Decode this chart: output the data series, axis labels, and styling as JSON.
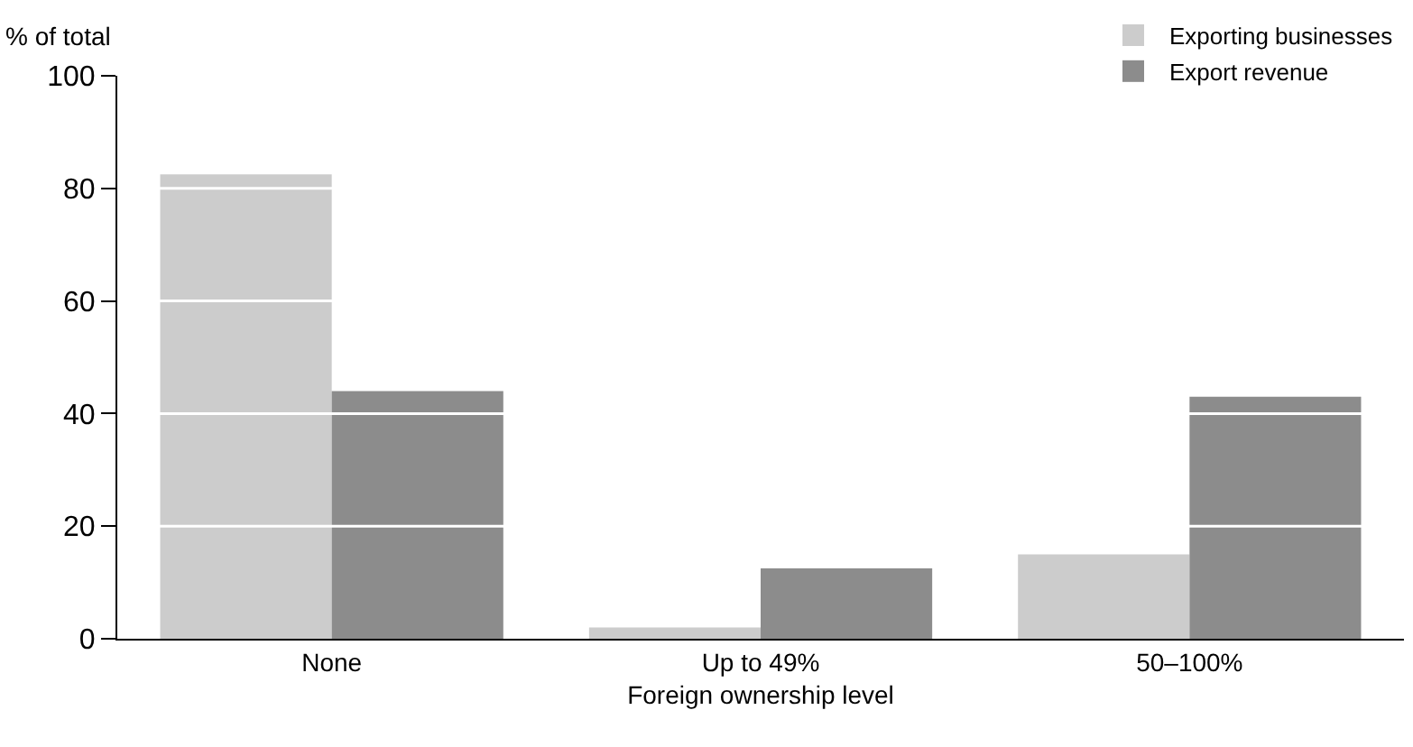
{
  "chart_data": {
    "type": "bar",
    "xlabel": "Foreign ownership level",
    "ylabel": "% of total",
    "categories": [
      "None",
      "Up to 49%",
      "50–100%"
    ],
    "series": [
      {
        "name": "Exporting businesses",
        "color": "#cccccc",
        "values": [
          82.5,
          2,
          15
        ]
      },
      {
        "name": "Export revenue",
        "color": "#8c8c8c",
        "values": [
          44,
          12.5,
          43
        ]
      }
    ],
    "ylim": [
      0,
      100
    ],
    "yticks": [
      0,
      20,
      40,
      60,
      80,
      100
    ],
    "grid": "y",
    "legend": "top right"
  }
}
